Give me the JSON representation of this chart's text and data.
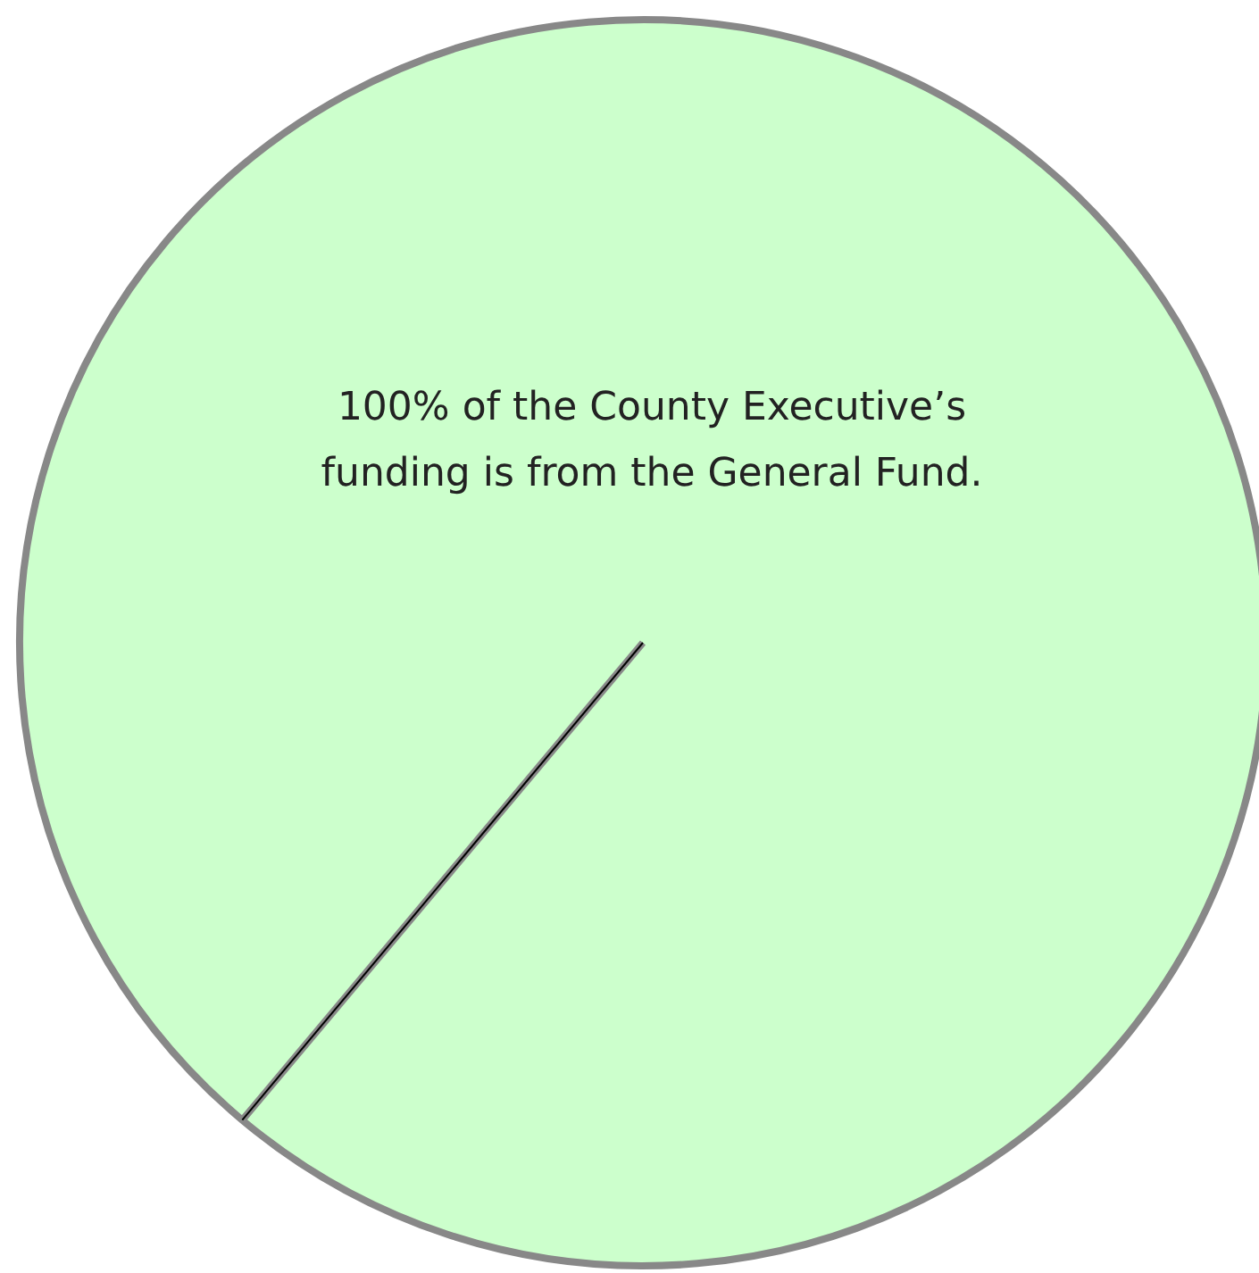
{
  "chart_data": {
    "type": "pie",
    "categories": [
      null
    ],
    "values": [
      100
    ],
    "colors": [
      "#ccffcc"
    ],
    "annotations": [
      "100% of the County Executive’s funding is from the General Fund."
    ],
    "legend": false
  }
}
